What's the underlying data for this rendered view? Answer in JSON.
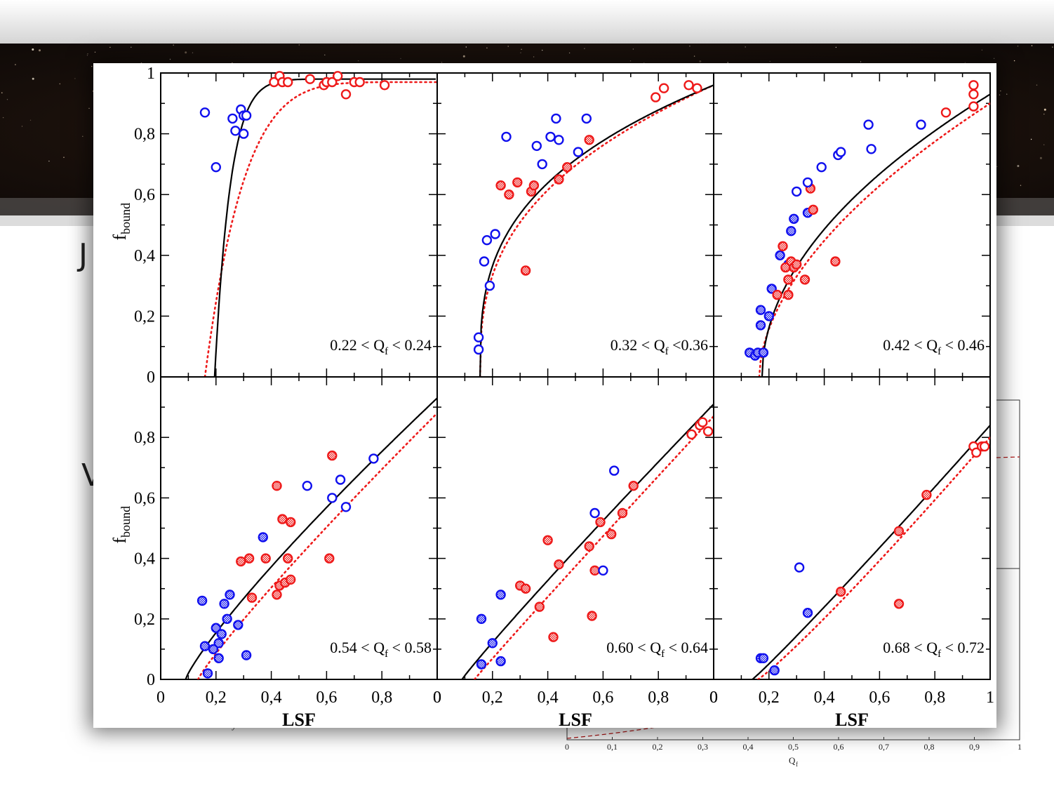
{
  "slide": {
    "partial_letters": [
      "J",
      "V"
    ],
    "background_plot_ticks": [
      "0",
      "0,1",
      "0,2",
      "0,3",
      "0,4",
      "0,5",
      "0,6",
      "0,7",
      "0,8",
      "0,9",
      "1"
    ],
    "background_plot_xlabel": "Q",
    "background_plot_xlabel_sub": "f",
    "background_left_fragment": "y"
  },
  "colors": {
    "blue": "#1010ee",
    "red": "#ee1a1a",
    "fit": "#000000",
    "dotted": "#ee1a1a"
  },
  "chart_data": [
    {
      "type": "scatter",
      "panel": "top-left",
      "annotation": "0.22 < Q",
      "annotation_sub": "f",
      "annotation_tail": " < 0.24",
      "xlim": [
        0,
        1
      ],
      "ylim": [
        0,
        1
      ],
      "ylabel": "f",
      "ylabel_sub": "bound",
      "xlabel": "",
      "yticks": [
        "0",
        "0,2",
        "0,4",
        "0,6",
        "0,8",
        "1"
      ],
      "xticks": [],
      "series": [
        {
          "marker": "blue-open",
          "points": [
            [
              0.16,
              0.87
            ],
            [
              0.2,
              0.69
            ],
            [
              0.26,
              0.85
            ],
            [
              0.27,
              0.81
            ],
            [
              0.29,
              0.88
            ],
            [
              0.3,
              0.86
            ],
            [
              0.3,
              0.8
            ],
            [
              0.31,
              0.86
            ]
          ]
        },
        {
          "marker": "red-open",
          "points": [
            [
              0.41,
              0.97
            ],
            [
              0.43,
              0.99
            ],
            [
              0.44,
              0.97
            ],
            [
              0.46,
              0.97
            ],
            [
              0.54,
              0.98
            ],
            [
              0.59,
              0.96
            ],
            [
              0.6,
              0.97
            ],
            [
              0.62,
              0.97
            ],
            [
              0.64,
              0.99
            ],
            [
              0.67,
              0.93
            ],
            [
              0.7,
              0.97
            ],
            [
              0.72,
              0.97
            ],
            [
              0.81,
              0.96
            ]
          ]
        }
      ]
    },
    {
      "type": "scatter",
      "panel": "top-middle",
      "annotation": "0.32 < Q",
      "annotation_sub": "f",
      "annotation_tail": " <0.36",
      "xlim": [
        0,
        1
      ],
      "ylim": [
        0,
        1
      ],
      "xticks": [],
      "series": [
        {
          "marker": "blue-open",
          "points": [
            [
              0.15,
              0.13
            ],
            [
              0.15,
              0.09
            ],
            [
              0.17,
              0.38
            ],
            [
              0.18,
              0.45
            ],
            [
              0.19,
              0.3
            ],
            [
              0.21,
              0.47
            ],
            [
              0.25,
              0.79
            ],
            [
              0.36,
              0.76
            ],
            [
              0.38,
              0.7
            ],
            [
              0.41,
              0.79
            ],
            [
              0.43,
              0.85
            ],
            [
              0.44,
              0.78
            ],
            [
              0.51,
              0.74
            ],
            [
              0.54,
              0.85
            ]
          ]
        },
        {
          "marker": "red-hatched",
          "points": [
            [
              0.23,
              0.63
            ],
            [
              0.26,
              0.6
            ],
            [
              0.29,
              0.64
            ],
            [
              0.32,
              0.35
            ],
            [
              0.34,
              0.61
            ],
            [
              0.35,
              0.63
            ],
            [
              0.44,
              0.65
            ],
            [
              0.47,
              0.69
            ],
            [
              0.55,
              0.78
            ]
          ]
        },
        {
          "marker": "red-open",
          "points": [
            [
              0.79,
              0.92
            ],
            [
              0.82,
              0.95
            ],
            [
              0.91,
              0.96
            ],
            [
              0.94,
              0.95
            ]
          ]
        }
      ]
    },
    {
      "type": "scatter",
      "panel": "top-right",
      "annotation": "0.42 < Q",
      "annotation_sub": "f",
      "annotation_tail": " < 0.46",
      "xlim": [
        0,
        1
      ],
      "ylim": [
        0,
        1
      ],
      "xticks": [],
      "series": [
        {
          "marker": "blue-hatched",
          "points": [
            [
              0.13,
              0.08
            ],
            [
              0.15,
              0.07
            ],
            [
              0.16,
              0.08
            ],
            [
              0.17,
              0.22
            ],
            [
              0.17,
              0.17
            ],
            [
              0.18,
              0.08
            ],
            [
              0.2,
              0.2
            ],
            [
              0.21,
              0.29
            ],
            [
              0.24,
              0.4
            ],
            [
              0.27,
              0.37
            ],
            [
              0.28,
              0.48
            ],
            [
              0.29,
              0.52
            ],
            [
              0.34,
              0.54
            ]
          ]
        },
        {
          "marker": "red-hatched",
          "points": [
            [
              0.23,
              0.27
            ],
            [
              0.25,
              0.43
            ],
            [
              0.26,
              0.36
            ],
            [
              0.27,
              0.27
            ],
            [
              0.27,
              0.32
            ],
            [
              0.28,
              0.38
            ],
            [
              0.29,
              0.36
            ],
            [
              0.3,
              0.37
            ],
            [
              0.33,
              0.32
            ],
            [
              0.35,
              0.62
            ],
            [
              0.36,
              0.55
            ],
            [
              0.44,
              0.38
            ]
          ]
        },
        {
          "marker": "blue-open",
          "points": [
            [
              0.3,
              0.61
            ],
            [
              0.34,
              0.64
            ],
            [
              0.39,
              0.69
            ],
            [
              0.45,
              0.73
            ],
            [
              0.46,
              0.74
            ],
            [
              0.56,
              0.83
            ],
            [
              0.57,
              0.75
            ],
            [
              0.75,
              0.83
            ]
          ]
        },
        {
          "marker": "red-open",
          "points": [
            [
              0.84,
              0.87
            ],
            [
              0.94,
              0.89
            ],
            [
              0.94,
              0.93
            ],
            [
              0.94,
              0.96
            ]
          ]
        }
      ]
    },
    {
      "type": "scatter",
      "panel": "bottom-left",
      "annotation": "0.54 < Q",
      "annotation_sub": "f",
      "annotation_tail": " < 0.58",
      "xlim": [
        0,
        1
      ],
      "ylim": [
        0,
        1
      ],
      "ylabel": "f",
      "ylabel_sub": "bound",
      "xlabel": "LSF",
      "yticks": [
        "0",
        "0,2",
        "0,4",
        "0,6",
        "0,8"
      ],
      "xticks": [
        "0",
        "0,2",
        "0,4",
        "0,6",
        "0,8",
        "0"
      ],
      "series": [
        {
          "marker": "blue-hatched",
          "points": [
            [
              0.15,
              0.26
            ],
            [
              0.16,
              0.11
            ],
            [
              0.17,
              0.02
            ],
            [
              0.19,
              0.1
            ],
            [
              0.2,
              0.17
            ],
            [
              0.21,
              0.12
            ],
            [
              0.21,
              0.07
            ],
            [
              0.22,
              0.15
            ],
            [
              0.23,
              0.25
            ],
            [
              0.24,
              0.2
            ],
            [
              0.25,
              0.28
            ],
            [
              0.28,
              0.18
            ],
            [
              0.31,
              0.08
            ],
            [
              0.37,
              0.47
            ]
          ]
        },
        {
          "marker": "red-hatched",
          "points": [
            [
              0.29,
              0.39
            ],
            [
              0.32,
              0.4
            ],
            [
              0.33,
              0.27
            ],
            [
              0.38,
              0.4
            ],
            [
              0.42,
              0.28
            ],
            [
              0.42,
              0.64
            ],
            [
              0.43,
              0.31
            ],
            [
              0.44,
              0.53
            ],
            [
              0.45,
              0.32
            ],
            [
              0.46,
              0.4
            ],
            [
              0.47,
              0.52
            ],
            [
              0.47,
              0.33
            ],
            [
              0.61,
              0.4
            ],
            [
              0.62,
              0.74
            ]
          ]
        },
        {
          "marker": "blue-open",
          "points": [
            [
              0.53,
              0.64
            ],
            [
              0.62,
              0.6
            ],
            [
              0.65,
              0.66
            ],
            [
              0.67,
              0.57
            ],
            [
              0.77,
              0.73
            ]
          ]
        }
      ]
    },
    {
      "type": "scatter",
      "panel": "bottom-middle",
      "annotation": "0.60 < Q",
      "annotation_sub": "f",
      "annotation_tail": " < 0.64",
      "xlim": [
        0,
        1
      ],
      "ylim": [
        0,
        1
      ],
      "xlabel": "LSF",
      "xticks": [
        "0",
        "0,2",
        "0,4",
        "0,6",
        "0,8",
        "0"
      ],
      "series": [
        {
          "marker": "blue-hatched",
          "points": [
            [
              0.16,
              0.2
            ],
            [
              0.16,
              0.05
            ],
            [
              0.2,
              0.12
            ],
            [
              0.23,
              0.28
            ],
            [
              0.23,
              0.06
            ]
          ]
        },
        {
          "marker": "red-hatched",
          "points": [
            [
              0.3,
              0.31
            ],
            [
              0.32,
              0.3
            ],
            [
              0.37,
              0.24
            ],
            [
              0.4,
              0.46
            ],
            [
              0.42,
              0.14
            ],
            [
              0.44,
              0.38
            ],
            [
              0.55,
              0.44
            ],
            [
              0.56,
              0.21
            ],
            [
              0.57,
              0.36
            ],
            [
              0.59,
              0.52
            ],
            [
              0.63,
              0.48
            ],
            [
              0.67,
              0.55
            ],
            [
              0.71,
              0.64
            ]
          ]
        },
        {
          "marker": "blue-open",
          "points": [
            [
              0.57,
              0.55
            ],
            [
              0.6,
              0.36
            ],
            [
              0.64,
              0.69
            ]
          ]
        },
        {
          "marker": "red-open",
          "points": [
            [
              0.92,
              0.81
            ],
            [
              0.95,
              0.84
            ],
            [
              0.96,
              0.85
            ],
            [
              0.98,
              0.82
            ]
          ]
        }
      ]
    },
    {
      "type": "scatter",
      "panel": "bottom-right",
      "annotation": "0.68 < Q",
      "annotation_sub": "f",
      "annotation_tail": " < 0.72",
      "xlim": [
        0,
        1
      ],
      "ylim": [
        0,
        1
      ],
      "xlabel": "LSF",
      "xticks": [
        "0",
        "0,2",
        "0,4",
        "0,6",
        "0,8",
        "1"
      ],
      "series": [
        {
          "marker": "blue-hatched",
          "points": [
            [
              0.17,
              0.07
            ],
            [
              0.18,
              0.07
            ],
            [
              0.22,
              0.03
            ],
            [
              0.34,
              0.22
            ]
          ]
        },
        {
          "marker": "blue-open",
          "points": [
            [
              0.31,
              0.37
            ]
          ]
        },
        {
          "marker": "red-hatched",
          "points": [
            [
              0.46,
              0.29
            ],
            [
              0.67,
              0.49
            ],
            [
              0.67,
              0.25
            ],
            [
              0.77,
              0.61
            ]
          ]
        },
        {
          "marker": "red-open",
          "points": [
            [
              0.94,
              0.77
            ],
            [
              0.95,
              0.75
            ],
            [
              0.97,
              0.77
            ],
            [
              0.98,
              0.77
            ]
          ]
        }
      ]
    }
  ]
}
